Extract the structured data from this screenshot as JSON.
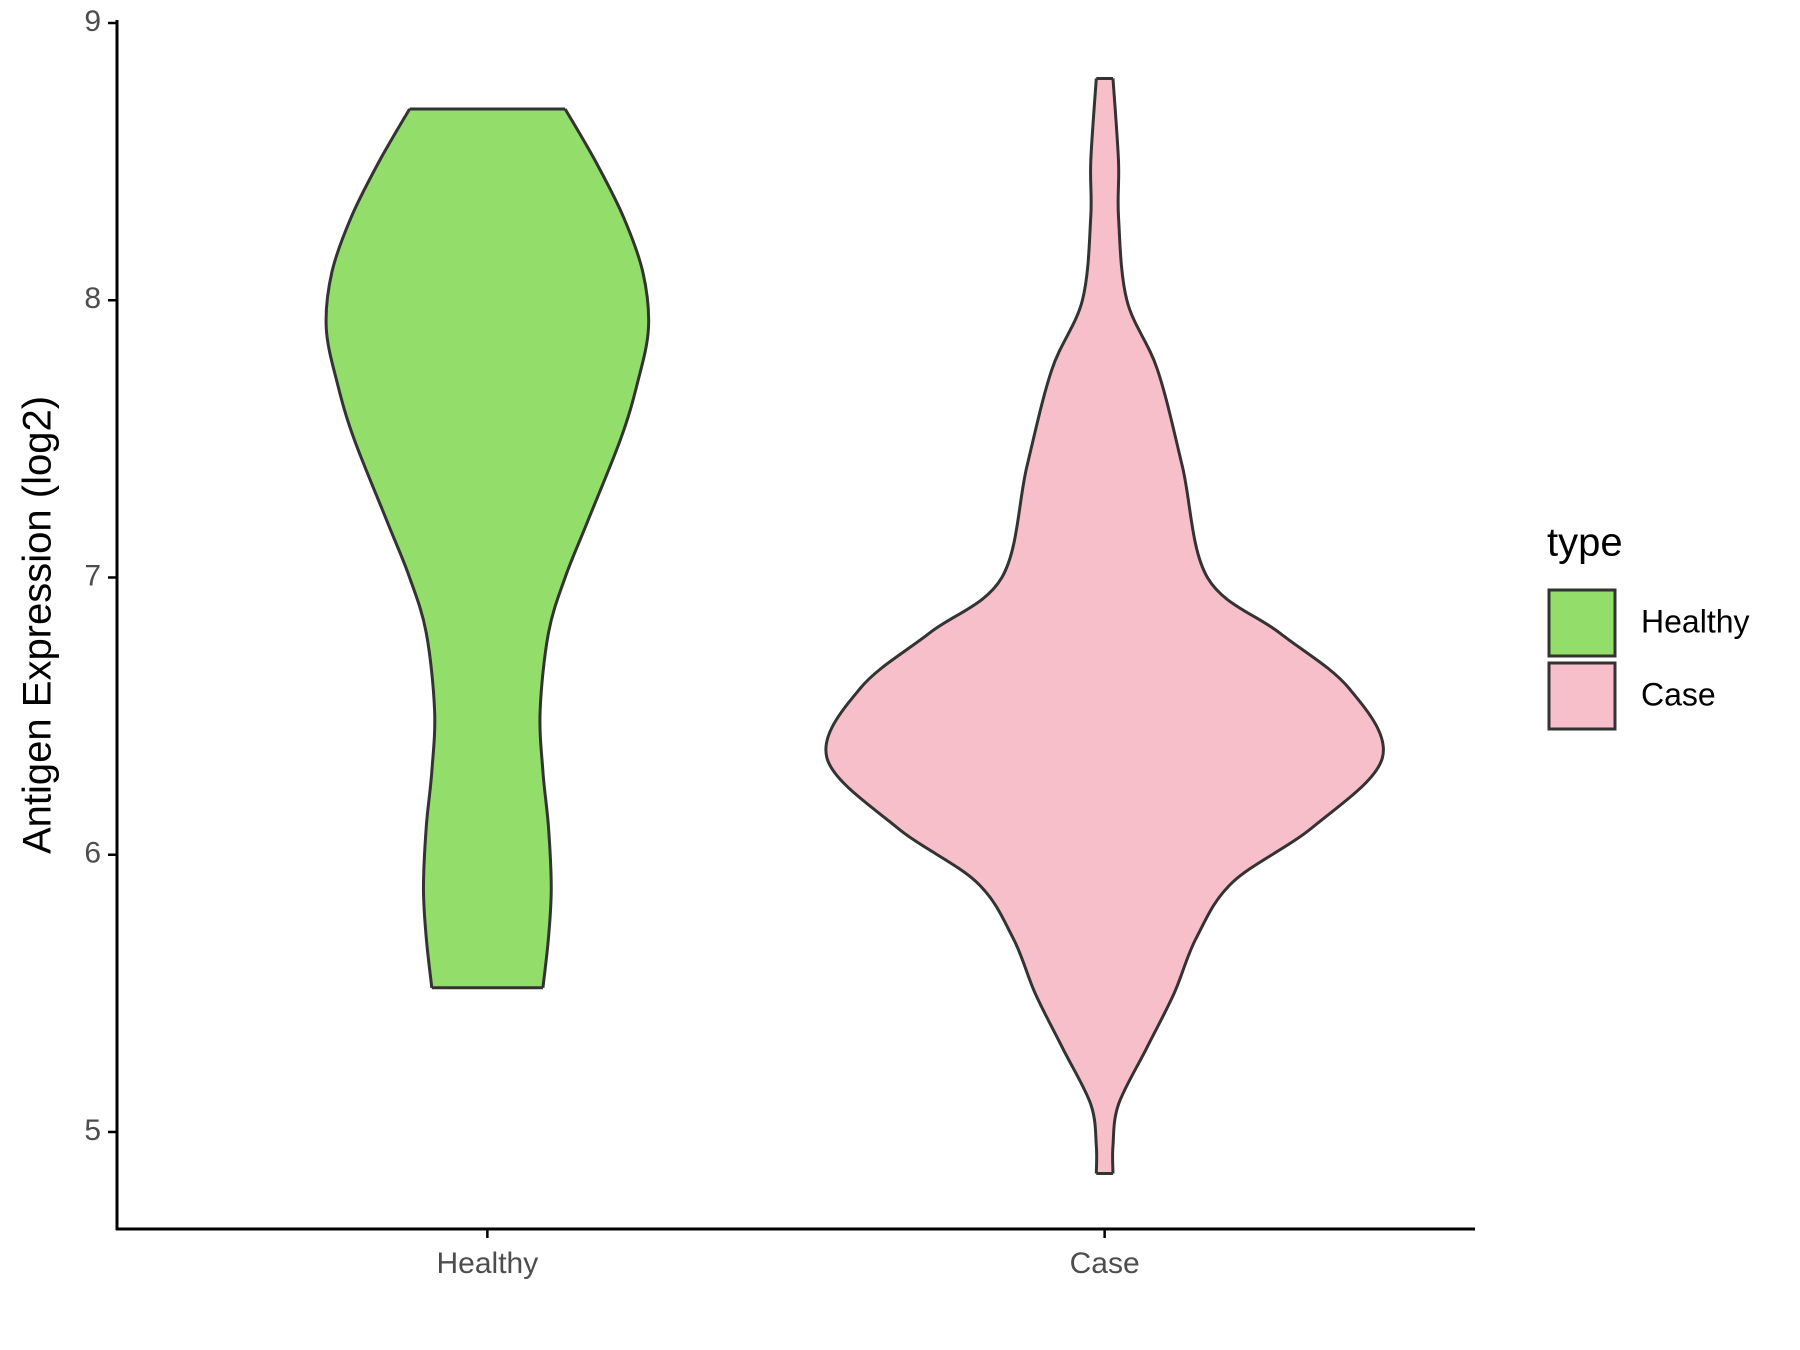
{
  "chart_data": {
    "type": "violin",
    "ylabel": "Antigen Expression (log2)",
    "legend_title": "type",
    "legend": "right",
    "categories": [
      "Healthy",
      "Case"
    ],
    "series": [
      {
        "name": "Healthy",
        "color": "#93dd6a",
        "y": [
          5.52,
          5.7,
          5.88,
          6.1,
          6.3,
          6.52,
          6.8,
          7.0,
          7.2,
          7.5,
          7.7,
          7.9,
          8.1,
          8.3,
          8.5,
          8.69
        ],
        "density": [
          0.2,
          0.22,
          0.23,
          0.22,
          0.2,
          0.19,
          0.22,
          0.28,
          0.36,
          0.48,
          0.54,
          0.58,
          0.56,
          0.49,
          0.39,
          0.28
        ]
      },
      {
        "name": "Case",
        "color": "#f7bfca",
        "y": [
          4.85,
          4.95,
          5.1,
          5.3,
          5.5,
          5.7,
          5.9,
          6.1,
          6.35,
          6.6,
          6.8,
          7.0,
          7.4,
          7.75,
          8.0,
          8.3,
          8.5,
          8.8
        ],
        "density": [
          0.03,
          0.03,
          0.05,
          0.15,
          0.25,
          0.33,
          0.46,
          0.75,
          1.0,
          0.88,
          0.63,
          0.37,
          0.28,
          0.19,
          0.08,
          0.05,
          0.05,
          0.03
        ]
      }
    ],
    "ylim": [
      4.65,
      9
    ],
    "yticks": [
      5,
      6,
      7,
      8,
      9
    ]
  }
}
